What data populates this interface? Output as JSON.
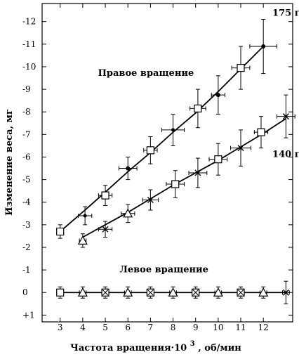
{
  "chart_data": {
    "type": "scatter",
    "xlabel": "Частота вращения·10",
    "xlabel_superscript": "3",
    "xlabel_unit": ", об/мин",
    "ylabel": "Изменение веса, мг",
    "xlim": [
      2.2,
      13.3
    ],
    "ylim": [
      -12.8,
      1.3
    ],
    "y_reversed": true,
    "x_ticks": [
      3,
      4,
      5,
      6,
      7,
      8,
      9,
      10,
      11,
      12
    ],
    "x_tick_labels": [
      "3",
      "4",
      "5",
      "6",
      "7",
      "8",
      "9",
      "10",
      "11",
      "12"
    ],
    "y_ticks": [
      -12,
      -11,
      -10,
      -9,
      -8,
      -7,
      -6,
      -5,
      -4,
      -3,
      -2,
      -1,
      0,
      1
    ],
    "y_tick_labels": [
      "-12",
      "-11",
      "-10",
      "-9",
      "-8",
      "-7",
      "-6",
      "-5",
      "-4",
      "-3",
      "-2",
      "-1",
      "0",
      "+1"
    ],
    "grid": false,
    "annotations": [
      {
        "text": "Правое вращение",
        "x": 6.8,
        "y": -9.6
      },
      {
        "text": "Левое вращение",
        "x": 7.6,
        "y": -0.9
      }
    ],
    "series": [
      {
        "name": "175 г",
        "label_at": [
          12.4,
          -12.25
        ],
        "points": [
          {
            "x": 3,
            "y": -2.7,
            "xerr": 0.15,
            "yerr": 0.3,
            "marker": "square"
          },
          {
            "x": 4.1,
            "y": -3.4,
            "xerr": 0.3,
            "yerr": 0.4,
            "marker": "plus"
          },
          {
            "x": 5,
            "y": -4.3,
            "xerr": 0.3,
            "yerr": 0.45,
            "marker": "square"
          },
          {
            "x": 6,
            "y": -5.5,
            "xerr": 0.4,
            "yerr": 0.5,
            "marker": "dot"
          },
          {
            "x": 7,
            "y": -6.3,
            "xerr": 0.3,
            "yerr": 0.6,
            "marker": "square"
          },
          {
            "x": 8,
            "y": -7.2,
            "xerr": 0.5,
            "yerr": 0.7,
            "marker": "plus"
          },
          {
            "x": 9.1,
            "y": -8.15,
            "xerr": 0.35,
            "yerr": 0.85,
            "marker": "square"
          },
          {
            "x": 10,
            "y": -8.75,
            "xerr": 0.3,
            "yerr": 0.85,
            "marker": "dot"
          },
          {
            "x": 11,
            "y": -9.95,
            "xerr": 0.4,
            "yerr": 0.95,
            "marker": "square"
          },
          {
            "x": 12,
            "y": -10.9,
            "xerr": 0.6,
            "yerr": 1.2,
            "marker": "dot"
          }
        ],
        "line": [
          [
            3,
            -2.7
          ],
          [
            4.1,
            -3.65
          ],
          [
            5,
            -4.45
          ],
          [
            6,
            -5.35
          ],
          [
            7,
            -6.2
          ],
          [
            8,
            -7.1
          ],
          [
            9,
            -7.95
          ],
          [
            10,
            -8.9
          ],
          [
            11,
            -9.9
          ],
          [
            12,
            -10.9
          ]
        ]
      },
      {
        "name": "140 г",
        "label_at": [
          12.4,
          -6.0
        ],
        "points": [
          {
            "x": 4,
            "y": -2.3,
            "xerr": 0.15,
            "yerr": 0.3,
            "marker": "triangle"
          },
          {
            "x": 5,
            "y": -2.8,
            "xerr": 0.3,
            "yerr": 0.35,
            "marker": "x"
          },
          {
            "x": 6,
            "y": -3.5,
            "xerr": 0.3,
            "yerr": 0.4,
            "marker": "triangle"
          },
          {
            "x": 7,
            "y": -4.1,
            "xerr": 0.35,
            "yerr": 0.45,
            "marker": "x"
          },
          {
            "x": 8.1,
            "y": -4.8,
            "xerr": 0.4,
            "yerr": 0.6,
            "marker": "square"
          },
          {
            "x": 9.1,
            "y": -5.3,
            "xerr": 0.4,
            "yerr": 0.65,
            "marker": "x"
          },
          {
            "x": 10,
            "y": -5.9,
            "xerr": 0.4,
            "yerr": 0.7,
            "marker": "square"
          },
          {
            "x": 11,
            "y": -6.4,
            "xerr": 0.45,
            "yerr": 0.8,
            "marker": "x"
          },
          {
            "x": 11.9,
            "y": -7.1,
            "xerr": 0.3,
            "yerr": 0.7,
            "marker": "square"
          },
          {
            "x": 13,
            "y": -7.8,
            "xerr": 0.4,
            "yerr": 0.95,
            "marker": "x"
          }
        ],
        "line": [
          [
            4,
            -2.45
          ],
          [
            5,
            -3.0
          ],
          [
            6,
            -3.55
          ],
          [
            7,
            -4.15
          ],
          [
            8,
            -4.75
          ],
          [
            9,
            -5.3
          ],
          [
            10,
            -5.85
          ],
          [
            11,
            -6.45
          ],
          [
            12,
            -7.05
          ],
          [
            13,
            -7.7
          ]
        ]
      },
      {
        "name": "Левое вращение",
        "points": [
          {
            "x": 3,
            "y": 0,
            "xerr": 0.15,
            "yerr": 0.25,
            "marker": "square"
          },
          {
            "x": 4,
            "y": 0,
            "xerr": 0.15,
            "yerr": 0.25,
            "marker": "triangle"
          },
          {
            "x": 5,
            "y": 0,
            "xerr": 0.15,
            "yerr": 0.25,
            "marker": "boxx"
          },
          {
            "x": 6,
            "y": 0,
            "xerr": 0.15,
            "yerr": 0.25,
            "marker": "triangle"
          },
          {
            "x": 7,
            "y": 0,
            "xerr": 0.15,
            "yerr": 0.25,
            "marker": "boxx"
          },
          {
            "x": 8,
            "y": 0,
            "xerr": 0.15,
            "yerr": 0.25,
            "marker": "triangle"
          },
          {
            "x": 9,
            "y": 0,
            "xerr": 0.15,
            "yerr": 0.25,
            "marker": "boxx"
          },
          {
            "x": 10,
            "y": 0,
            "xerr": 0.15,
            "yerr": 0.25,
            "marker": "triangle"
          },
          {
            "x": 11,
            "y": 0,
            "xerr": 0.15,
            "yerr": 0.25,
            "marker": "boxx"
          },
          {
            "x": 12,
            "y": 0,
            "xerr": 0.15,
            "yerr": 0.25,
            "marker": "triangle"
          },
          {
            "x": 13,
            "y": 0,
            "xerr": 0.15,
            "yerr": 0.5,
            "marker": "x"
          }
        ],
        "line": [
          [
            3,
            0
          ],
          [
            13,
            0
          ]
        ]
      }
    ]
  }
}
